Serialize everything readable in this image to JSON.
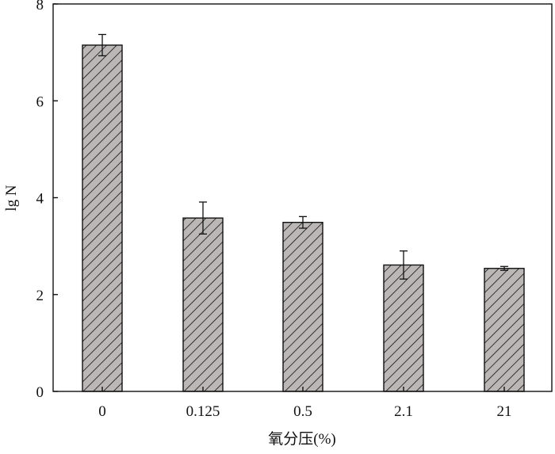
{
  "chart_data": {
    "type": "bar",
    "categories": [
      "0",
      "0.125",
      "0.5",
      "2.1",
      "21"
    ],
    "values": [
      7.15,
      3.58,
      3.49,
      2.61,
      2.54
    ],
    "errors": [
      0.22,
      0.33,
      0.12,
      0.29,
      0.04
    ],
    "xlabel": "氧分压(%)",
    "ylabel": "lg N",
    "ylim": [
      0,
      8
    ],
    "yticks": [
      "0",
      "2",
      "4",
      "6",
      "8"
    ],
    "grid": false,
    "bar_color": "#bcb7b7",
    "hatch": "diagonal"
  }
}
